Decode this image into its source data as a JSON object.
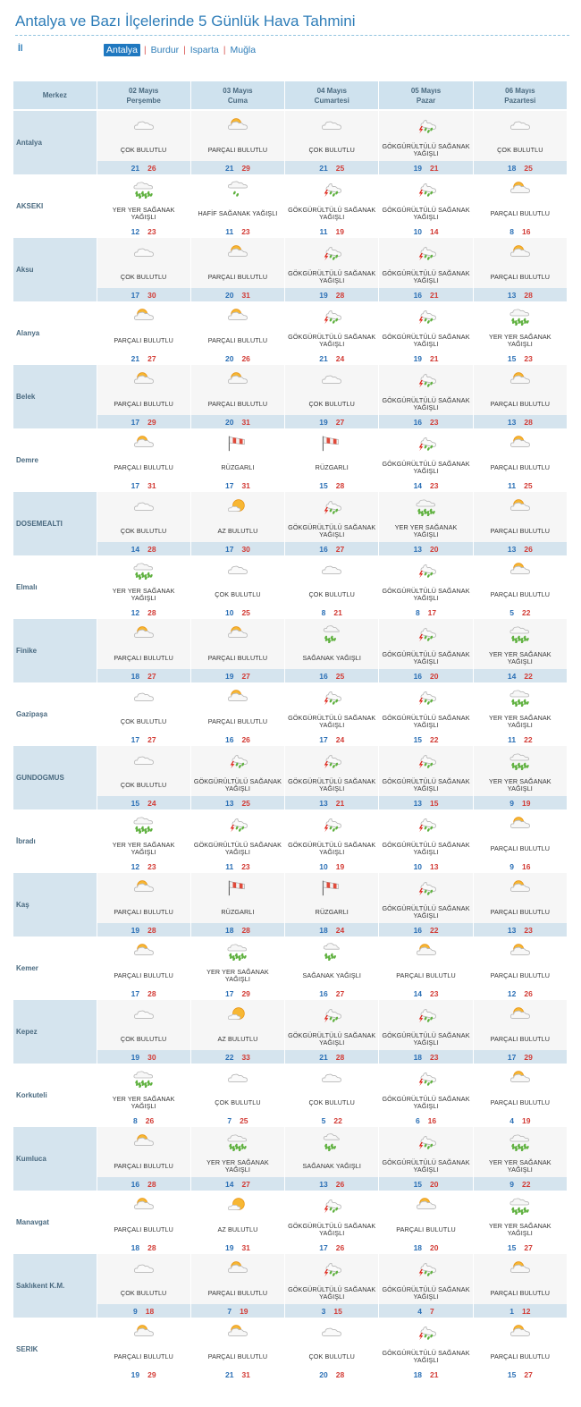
{
  "title": "Antalya ve Bazı İlçelerinde 5 Günlük Hava Tahmini",
  "il_label": "İl",
  "provinces": [
    {
      "label": "Antalya",
      "active": true
    },
    {
      "label": "Burdur",
      "active": false
    },
    {
      "label": "Isparta",
      "active": false
    },
    {
      "label": "Muğla",
      "active": false
    }
  ],
  "header": {
    "merkez": "Merkez",
    "days": [
      {
        "date": "02 Mayıs",
        "weekday": "Perşembe"
      },
      {
        "date": "03 Mayıs",
        "weekday": "Cuma"
      },
      {
        "date": "04 Mayıs",
        "weekday": "Cumartesi"
      },
      {
        "date": "05 Mayıs",
        "weekday": "Pazar"
      },
      {
        "date": "06 Mayıs",
        "weekday": "Pazartesi"
      }
    ]
  },
  "icon_names": {
    "cok": "mostly-cloudy-icon",
    "parcali": "partly-cloudy-icon",
    "az": "few-clouds-icon",
    "gsy": "thunder-shower-icon",
    "yysy": "scattered-showers-icon",
    "hsy": "light-shower-icon",
    "sy": "shower-icon",
    "ruzgar": "windy-icon"
  },
  "colors": {
    "accent": "#2e7db8",
    "low_temp": "#2a6fb5",
    "high_temp": "#d23a34",
    "header_bg": "#cfe2ee"
  },
  "rows": [
    {
      "city": "Antalya",
      "days": [
        {
          "icon": "cok",
          "cond": "ÇOK BULUTLU",
          "low": "21",
          "high": "26"
        },
        {
          "icon": "parcali",
          "cond": "PARÇALI BULUTLU",
          "low": "21",
          "high": "29"
        },
        {
          "icon": "cok",
          "cond": "ÇOK BULUTLU",
          "low": "21",
          "high": "25"
        },
        {
          "icon": "gsy",
          "cond": "GÖKGÜRÜLTÜLÜ SAĞANAK YAĞIŞLI",
          "low": "19",
          "high": "21"
        },
        {
          "icon": "cok",
          "cond": "ÇOK BULUTLU",
          "low": "18",
          "high": "25"
        }
      ]
    },
    {
      "city": "AKSEKI",
      "days": [
        {
          "icon": "yysy",
          "cond": "YER YER SAĞANAK YAĞIŞLI",
          "low": "12",
          "high": "23"
        },
        {
          "icon": "hsy",
          "cond": "HAFİF SAĞANAK YAĞIŞLI",
          "low": "11",
          "high": "23"
        },
        {
          "icon": "gsy",
          "cond": "GÖKGÜRÜLTÜLÜ SAĞANAK YAĞIŞLI",
          "low": "11",
          "high": "19"
        },
        {
          "icon": "gsy",
          "cond": "GÖKGÜRÜLTÜLÜ SAĞANAK YAĞIŞLI",
          "low": "10",
          "high": "14"
        },
        {
          "icon": "parcali",
          "cond": "PARÇALI BULUTLU",
          "low": "8",
          "high": "16"
        }
      ]
    },
    {
      "city": "Aksu",
      "days": [
        {
          "icon": "cok",
          "cond": "ÇOK BULUTLU",
          "low": "17",
          "high": "30"
        },
        {
          "icon": "parcali",
          "cond": "PARÇALI BULUTLU",
          "low": "20",
          "high": "31"
        },
        {
          "icon": "gsy",
          "cond": "GÖKGÜRÜLTÜLÜ SAĞANAK YAĞIŞLI",
          "low": "19",
          "high": "28"
        },
        {
          "icon": "gsy",
          "cond": "GÖKGÜRÜLTÜLÜ SAĞANAK YAĞIŞLI",
          "low": "16",
          "high": "21"
        },
        {
          "icon": "parcali",
          "cond": "PARÇALI BULUTLU",
          "low": "13",
          "high": "28"
        }
      ]
    },
    {
      "city": "Alanya",
      "days": [
        {
          "icon": "parcali",
          "cond": "PARÇALI BULUTLU",
          "low": "21",
          "high": "27"
        },
        {
          "icon": "parcali",
          "cond": "PARÇALI BULUTLU",
          "low": "20",
          "high": "26"
        },
        {
          "icon": "gsy",
          "cond": "GÖKGÜRÜLTÜLÜ SAĞANAK YAĞIŞLI",
          "low": "21",
          "high": "24"
        },
        {
          "icon": "gsy",
          "cond": "GÖKGÜRÜLTÜLÜ SAĞANAK YAĞIŞLI",
          "low": "19",
          "high": "21"
        },
        {
          "icon": "yysy",
          "cond": "YER YER SAĞANAK YAĞIŞLI",
          "low": "15",
          "high": "23"
        }
      ]
    },
    {
      "city": "Belek",
      "days": [
        {
          "icon": "parcali",
          "cond": "PARÇALI BULUTLU",
          "low": "17",
          "high": "29"
        },
        {
          "icon": "parcali",
          "cond": "PARÇALI BULUTLU",
          "low": "20",
          "high": "31"
        },
        {
          "icon": "cok",
          "cond": "ÇOK BULUTLU",
          "low": "19",
          "high": "27"
        },
        {
          "icon": "gsy",
          "cond": "GÖKGÜRÜLTÜLÜ SAĞANAK YAĞIŞLI",
          "low": "16",
          "high": "23"
        },
        {
          "icon": "parcali",
          "cond": "PARÇALI BULUTLU",
          "low": "13",
          "high": "28"
        }
      ]
    },
    {
      "city": "Demre",
      "days": [
        {
          "icon": "parcali",
          "cond": "PARÇALI BULUTLU",
          "low": "17",
          "high": "31"
        },
        {
          "icon": "ruzgar",
          "cond": "RÜZGARLI",
          "low": "17",
          "high": "31"
        },
        {
          "icon": "ruzgar",
          "cond": "RÜZGARLI",
          "low": "15",
          "high": "28"
        },
        {
          "icon": "gsy",
          "cond": "GÖKGÜRÜLTÜLÜ SAĞANAK YAĞIŞLI",
          "low": "14",
          "high": "23"
        },
        {
          "icon": "parcali",
          "cond": "PARÇALI BULUTLU",
          "low": "11",
          "high": "25"
        }
      ]
    },
    {
      "city": "DOSEMEALTI",
      "days": [
        {
          "icon": "cok",
          "cond": "ÇOK BULUTLU",
          "low": "14",
          "high": "28"
        },
        {
          "icon": "az",
          "cond": "AZ BULUTLU",
          "low": "17",
          "high": "30"
        },
        {
          "icon": "gsy",
          "cond": "GÖKGÜRÜLTÜLÜ SAĞANAK YAĞIŞLI",
          "low": "16",
          "high": "27"
        },
        {
          "icon": "yysy",
          "cond": "YER YER SAĞANAK YAĞIŞLI",
          "low": "13",
          "high": "20"
        },
        {
          "icon": "parcali",
          "cond": "PARÇALI BULUTLU",
          "low": "13",
          "high": "26"
        }
      ]
    },
    {
      "city": "Elmalı",
      "days": [
        {
          "icon": "yysy",
          "cond": "YER YER SAĞANAK YAĞIŞLI",
          "low": "12",
          "high": "28"
        },
        {
          "icon": "cok",
          "cond": "ÇOK BULUTLU",
          "low": "10",
          "high": "25"
        },
        {
          "icon": "cok",
          "cond": "ÇOK BULUTLU",
          "low": "8",
          "high": "21"
        },
        {
          "icon": "gsy",
          "cond": "GÖKGÜRÜLTÜLÜ SAĞANAK YAĞIŞLI",
          "low": "8",
          "high": "17"
        },
        {
          "icon": "parcali",
          "cond": "PARÇALI BULUTLU",
          "low": "5",
          "high": "22"
        }
      ]
    },
    {
      "city": "Finike",
      "days": [
        {
          "icon": "parcali",
          "cond": "PARÇALI BULUTLU",
          "low": "18",
          "high": "27"
        },
        {
          "icon": "parcali",
          "cond": "PARÇALI BULUTLU",
          "low": "19",
          "high": "27"
        },
        {
          "icon": "sy",
          "cond": "SAĞANAK YAĞIŞLI",
          "low": "16",
          "high": "25"
        },
        {
          "icon": "gsy",
          "cond": "GÖKGÜRÜLTÜLÜ SAĞANAK YAĞIŞLI",
          "low": "16",
          "high": "20"
        },
        {
          "icon": "yysy",
          "cond": "YER YER SAĞANAK YAĞIŞLI",
          "low": "14",
          "high": "22"
        }
      ]
    },
    {
      "city": "Gazipaşa",
      "days": [
        {
          "icon": "cok",
          "cond": "ÇOK BULUTLU",
          "low": "17",
          "high": "27"
        },
        {
          "icon": "parcali",
          "cond": "PARÇALI BULUTLU",
          "low": "16",
          "high": "26"
        },
        {
          "icon": "gsy",
          "cond": "GÖKGÜRÜLTÜLÜ SAĞANAK YAĞIŞLI",
          "low": "17",
          "high": "24"
        },
        {
          "icon": "gsy",
          "cond": "GÖKGÜRÜLTÜLÜ SAĞANAK YAĞIŞLI",
          "low": "15",
          "high": "22"
        },
        {
          "icon": "yysy",
          "cond": "YER YER SAĞANAK YAĞIŞLI",
          "low": "11",
          "high": "22"
        }
      ]
    },
    {
      "city": "GUNDOGMUS",
      "days": [
        {
          "icon": "cok",
          "cond": "ÇOK BULUTLU",
          "low": "15",
          "high": "24"
        },
        {
          "icon": "gsy",
          "cond": "GÖKGÜRÜLTÜLÜ SAĞANAK YAĞIŞLI",
          "low": "13",
          "high": "25"
        },
        {
          "icon": "gsy",
          "cond": "GÖKGÜRÜLTÜLÜ SAĞANAK YAĞIŞLI",
          "low": "13",
          "high": "21"
        },
        {
          "icon": "gsy",
          "cond": "GÖKGÜRÜLTÜLÜ SAĞANAK YAĞIŞLI",
          "low": "13",
          "high": "15"
        },
        {
          "icon": "yysy",
          "cond": "YER YER SAĞANAK YAĞIŞLI",
          "low": "9",
          "high": "19"
        }
      ]
    },
    {
      "city": "İbradı",
      "days": [
        {
          "icon": "yysy",
          "cond": "YER YER SAĞANAK YAĞIŞLI",
          "low": "12",
          "high": "23"
        },
        {
          "icon": "gsy",
          "cond": "GÖKGÜRÜLTÜLÜ SAĞANAK YAĞIŞLI",
          "low": "11",
          "high": "23"
        },
        {
          "icon": "gsy",
          "cond": "GÖKGÜRÜLTÜLÜ SAĞANAK YAĞIŞLI",
          "low": "10",
          "high": "19"
        },
        {
          "icon": "gsy",
          "cond": "GÖKGÜRÜLTÜLÜ SAĞANAK YAĞIŞLI",
          "low": "10",
          "high": "13"
        },
        {
          "icon": "parcali",
          "cond": "PARÇALI BULUTLU",
          "low": "9",
          "high": "16"
        }
      ]
    },
    {
      "city": "Kaş",
      "days": [
        {
          "icon": "parcali",
          "cond": "PARÇALI BULUTLU",
          "low": "19",
          "high": "28"
        },
        {
          "icon": "ruzgar",
          "cond": "RÜZGARLI",
          "low": "18",
          "high": "28"
        },
        {
          "icon": "ruzgar",
          "cond": "RÜZGARLI",
          "low": "18",
          "high": "24"
        },
        {
          "icon": "gsy",
          "cond": "GÖKGÜRÜLTÜLÜ SAĞANAK YAĞIŞLI",
          "low": "16",
          "high": "22"
        },
        {
          "icon": "parcali",
          "cond": "PARÇALI BULUTLU",
          "low": "13",
          "high": "23"
        }
      ]
    },
    {
      "city": "Kemer",
      "days": [
        {
          "icon": "parcali",
          "cond": "PARÇALI BULUTLU",
          "low": "17",
          "high": "28"
        },
        {
          "icon": "yysy",
          "cond": "YER YER SAĞANAK YAĞIŞLI",
          "low": "17",
          "high": "29"
        },
        {
          "icon": "sy",
          "cond": "SAĞANAK YAĞIŞLI",
          "low": "16",
          "high": "27"
        },
        {
          "icon": "parcali",
          "cond": "PARÇALI BULUTLU",
          "low": "14",
          "high": "23"
        },
        {
          "icon": "parcali",
          "cond": "PARÇALI BULUTLU",
          "low": "12",
          "high": "26"
        }
      ]
    },
    {
      "city": "Kepez",
      "days": [
        {
          "icon": "cok",
          "cond": "ÇOK BULUTLU",
          "low": "19",
          "high": "30"
        },
        {
          "icon": "az",
          "cond": "AZ BULUTLU",
          "low": "22",
          "high": "33"
        },
        {
          "icon": "gsy",
          "cond": "GÖKGÜRÜLTÜLÜ SAĞANAK YAĞIŞLI",
          "low": "21",
          "high": "28"
        },
        {
          "icon": "gsy",
          "cond": "GÖKGÜRÜLTÜLÜ SAĞANAK YAĞIŞLI",
          "low": "18",
          "high": "23"
        },
        {
          "icon": "parcali",
          "cond": "PARÇALI BULUTLU",
          "low": "17",
          "high": "29"
        }
      ]
    },
    {
      "city": "Korkuteli",
      "days": [
        {
          "icon": "yysy",
          "cond": "YER YER SAĞANAK YAĞIŞLI",
          "low": "8",
          "high": "26"
        },
        {
          "icon": "cok",
          "cond": "ÇOK BULUTLU",
          "low": "7",
          "high": "25"
        },
        {
          "icon": "cok",
          "cond": "ÇOK BULUTLU",
          "low": "5",
          "high": "22"
        },
        {
          "icon": "gsy",
          "cond": "GÖKGÜRÜLTÜLÜ SAĞANAK YAĞIŞLI",
          "low": "6",
          "high": "16"
        },
        {
          "icon": "parcali",
          "cond": "PARÇALI BULUTLU",
          "low": "4",
          "high": "19"
        }
      ]
    },
    {
      "city": "Kumluca",
      "days": [
        {
          "icon": "parcali",
          "cond": "PARÇALI BULUTLU",
          "low": "16",
          "high": "28"
        },
        {
          "icon": "yysy",
          "cond": "YER YER SAĞANAK YAĞIŞLI",
          "low": "14",
          "high": "27"
        },
        {
          "icon": "sy",
          "cond": "SAĞANAK YAĞIŞLI",
          "low": "13",
          "high": "26"
        },
        {
          "icon": "gsy",
          "cond": "GÖKGÜRÜLTÜLÜ SAĞANAK YAĞIŞLI",
          "low": "15",
          "high": "20"
        },
        {
          "icon": "yysy",
          "cond": "YER YER SAĞANAK YAĞIŞLI",
          "low": "9",
          "high": "22"
        }
      ]
    },
    {
      "city": "Manavgat",
      "days": [
        {
          "icon": "parcali",
          "cond": "PARÇALI BULUTLU",
          "low": "18",
          "high": "28"
        },
        {
          "icon": "az",
          "cond": "AZ BULUTLU",
          "low": "19",
          "high": "31"
        },
        {
          "icon": "gsy",
          "cond": "GÖKGÜRÜLTÜLÜ SAĞANAK YAĞIŞLI",
          "low": "17",
          "high": "26"
        },
        {
          "icon": "parcali",
          "cond": "PARÇALI BULUTLU",
          "low": "18",
          "high": "20"
        },
        {
          "icon": "yysy",
          "cond": "YER YER SAĞANAK YAĞIŞLI",
          "low": "15",
          "high": "27"
        }
      ]
    },
    {
      "city": "Saklıkent K.M.",
      "days": [
        {
          "icon": "cok",
          "cond": "ÇOK BULUTLU",
          "low": "9",
          "high": "18"
        },
        {
          "icon": "parcali",
          "cond": "PARÇALI BULUTLU",
          "low": "7",
          "high": "19"
        },
        {
          "icon": "gsy",
          "cond": "GÖKGÜRÜLTÜLÜ SAĞANAK YAĞIŞLI",
          "low": "3",
          "high": "15"
        },
        {
          "icon": "gsy",
          "cond": "GÖKGÜRÜLTÜLÜ SAĞANAK YAĞIŞLI",
          "low": "4",
          "high": "7"
        },
        {
          "icon": "parcali",
          "cond": "PARÇALI BULUTLU",
          "low": "1",
          "high": "12"
        }
      ]
    },
    {
      "city": "SERIK",
      "days": [
        {
          "icon": "parcali",
          "cond": "PARÇALI BULUTLU",
          "low": "19",
          "high": "29"
        },
        {
          "icon": "parcali",
          "cond": "PARÇALI BULUTLU",
          "low": "21",
          "high": "31"
        },
        {
          "icon": "cok",
          "cond": "ÇOK BULUTLU",
          "low": "20",
          "high": "28"
        },
        {
          "icon": "gsy",
          "cond": "GÖKGÜRÜLTÜLÜ SAĞANAK YAĞIŞLI",
          "low": "18",
          "high": "21"
        },
        {
          "icon": "parcali",
          "cond": "PARÇALI BULUTLU",
          "low": "15",
          "high": "27"
        }
      ]
    }
  ]
}
